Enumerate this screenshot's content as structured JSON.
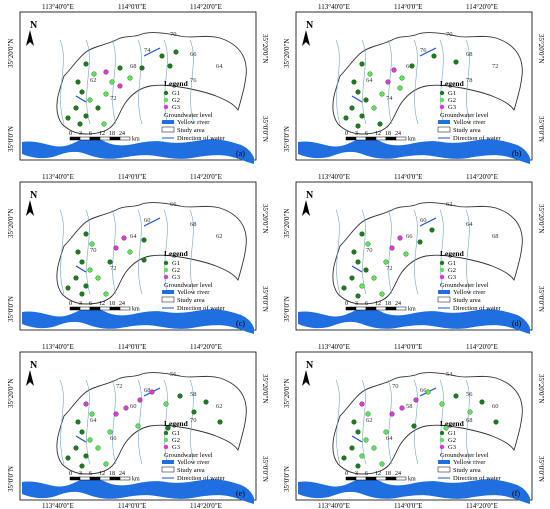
{
  "coords": {
    "top": [
      "113°40'0\"E",
      "114°0'0\"E",
      "114°20'0\"E"
    ],
    "bottom": [
      "113°40'0\"E",
      "114°0'0\"E",
      "114°20'0\"E"
    ],
    "left": "35°20'0\"N",
    "left2": "35°0'0\"N",
    "right": "35°20'0\"N",
    "right2": "35°0'0\"N"
  },
  "north_label": "N",
  "scale": {
    "ticks": [
      "0",
      "3",
      "6",
      "12",
      "18",
      "24"
    ],
    "unit": "km"
  },
  "legend": {
    "title": "Legend",
    "groups": [
      {
        "label": "G1",
        "color": "#1f7a1f"
      },
      {
        "label": "G2",
        "color": "#5ee05e"
      },
      {
        "label": "G3",
        "color": "#d63bd6"
      }
    ],
    "groundwater": "Groundwater  level",
    "yellow_river": "Yellow river",
    "study_area": "Study area",
    "direction": "Direction of water"
  },
  "colors": {
    "river": "#1f6fe0",
    "contour": "#6fa3c8",
    "boundary": "#333333",
    "arrow": "#1f4fd0"
  },
  "panels": [
    {
      "label": "(a)",
      "contours": [
        "70",
        "66",
        "68",
        "64",
        "62",
        "72",
        "74",
        "76"
      ]
    },
    {
      "label": "(b)",
      "contours": [
        "70",
        "68",
        "66",
        "72",
        "64",
        "74",
        "76",
        "78"
      ]
    },
    {
      "label": "(c)",
      "contours": [
        "66",
        "68",
        "64",
        "62",
        "70",
        "72",
        "60"
      ]
    },
    {
      "label": "(d)",
      "contours": [
        "62",
        "64",
        "66",
        "68",
        "70",
        "72",
        "60"
      ]
    },
    {
      "label": "(e)",
      "contours": [
        "56",
        "58",
        "60",
        "62",
        "64",
        "66",
        "68",
        "70",
        "72"
      ]
    },
    {
      "label": "(f)",
      "contours": [
        "54",
        "56",
        "58",
        "60",
        "62",
        "64",
        "66",
        "68",
        "70"
      ]
    }
  ]
}
